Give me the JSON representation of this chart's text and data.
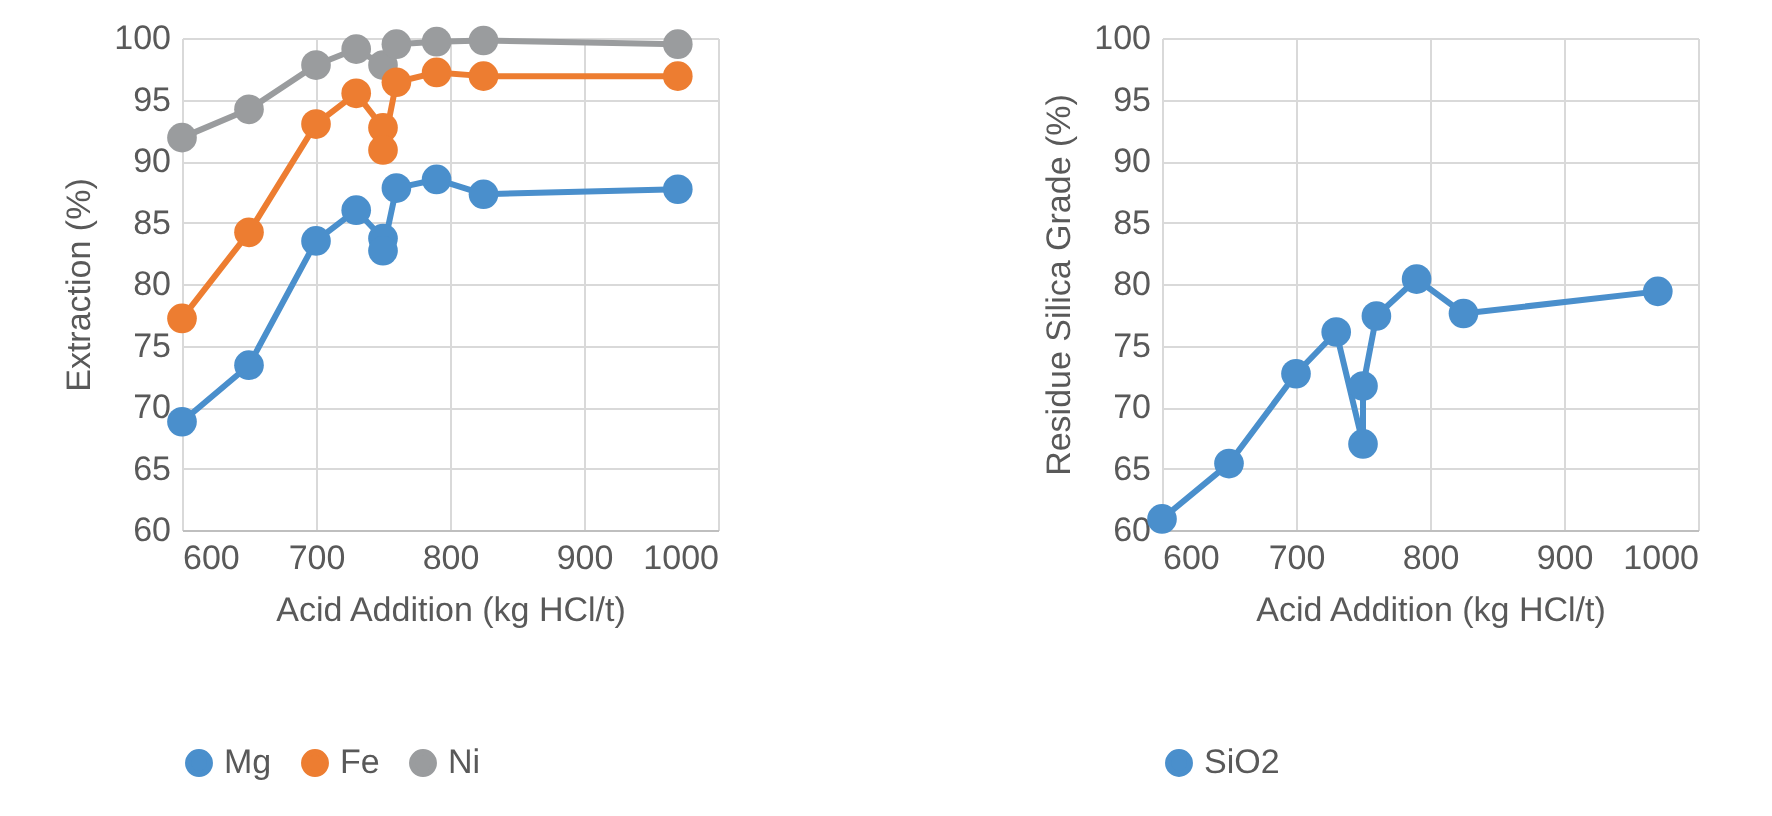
{
  "chart_data": [
    {
      "type": "line",
      "xlabel": "Acid Addition (kg HCl/t)",
      "ylabel": "Extraction (%)",
      "xlim": [
        600,
        1000
      ],
      "ylim": [
        60,
        100
      ],
      "xticks": [
        600,
        700,
        800,
        900,
        1000
      ],
      "yticks": [
        60,
        65,
        70,
        75,
        80,
        85,
        90,
        95,
        100
      ],
      "grid": true,
      "legend": "bottom",
      "marker": "circle",
      "line_style": "solid",
      "series": [
        {
          "name": "Mg",
          "color": "#4a8fcc",
          "x": [
            600,
            650,
            700,
            730,
            750,
            750,
            760,
            790,
            825,
            970
          ],
          "values": [
            68.8,
            73.4,
            83.5,
            86.0,
            83.7,
            82.7,
            87.8,
            88.5,
            87.3,
            87.7
          ]
        },
        {
          "name": "Fe",
          "color": "#ed7d31",
          "x": [
            600,
            650,
            700,
            730,
            750,
            750,
            760,
            790,
            825,
            970
          ],
          "values": [
            77.2,
            84.2,
            93.0,
            95.5,
            92.7,
            90.9,
            96.4,
            97.2,
            96.9,
            96.9
          ]
        },
        {
          "name": "Ni",
          "color": "#9a9c9e",
          "x": [
            600,
            650,
            700,
            730,
            750,
            760,
            790,
            825,
            970
          ],
          "values": [
            91.9,
            94.2,
            97.8,
            99.1,
            97.8,
            99.5,
            99.7,
            99.8,
            99.5
          ]
        }
      ]
    },
    {
      "type": "line",
      "xlabel": "Acid Addition (kg HCl/t)",
      "ylabel": "Residue Silica Grade (%)",
      "xlim": [
        600,
        1000
      ],
      "ylim": [
        60,
        100
      ],
      "xticks": [
        600,
        700,
        800,
        900,
        1000
      ],
      "yticks": [
        60,
        65,
        70,
        75,
        80,
        85,
        90,
        95,
        100
      ],
      "grid": true,
      "legend": "bottom",
      "marker": "circle",
      "line_style": "solid",
      "series": [
        {
          "name": "SiO2",
          "color": "#4a8fcc",
          "x": [
            600,
            650,
            700,
            730,
            750,
            750,
            760,
            790,
            825,
            970
          ],
          "values": [
            60.9,
            65.4,
            72.7,
            76.1,
            67.0,
            71.7,
            77.4,
            80.4,
            77.6,
            79.4
          ]
        }
      ]
    }
  ]
}
